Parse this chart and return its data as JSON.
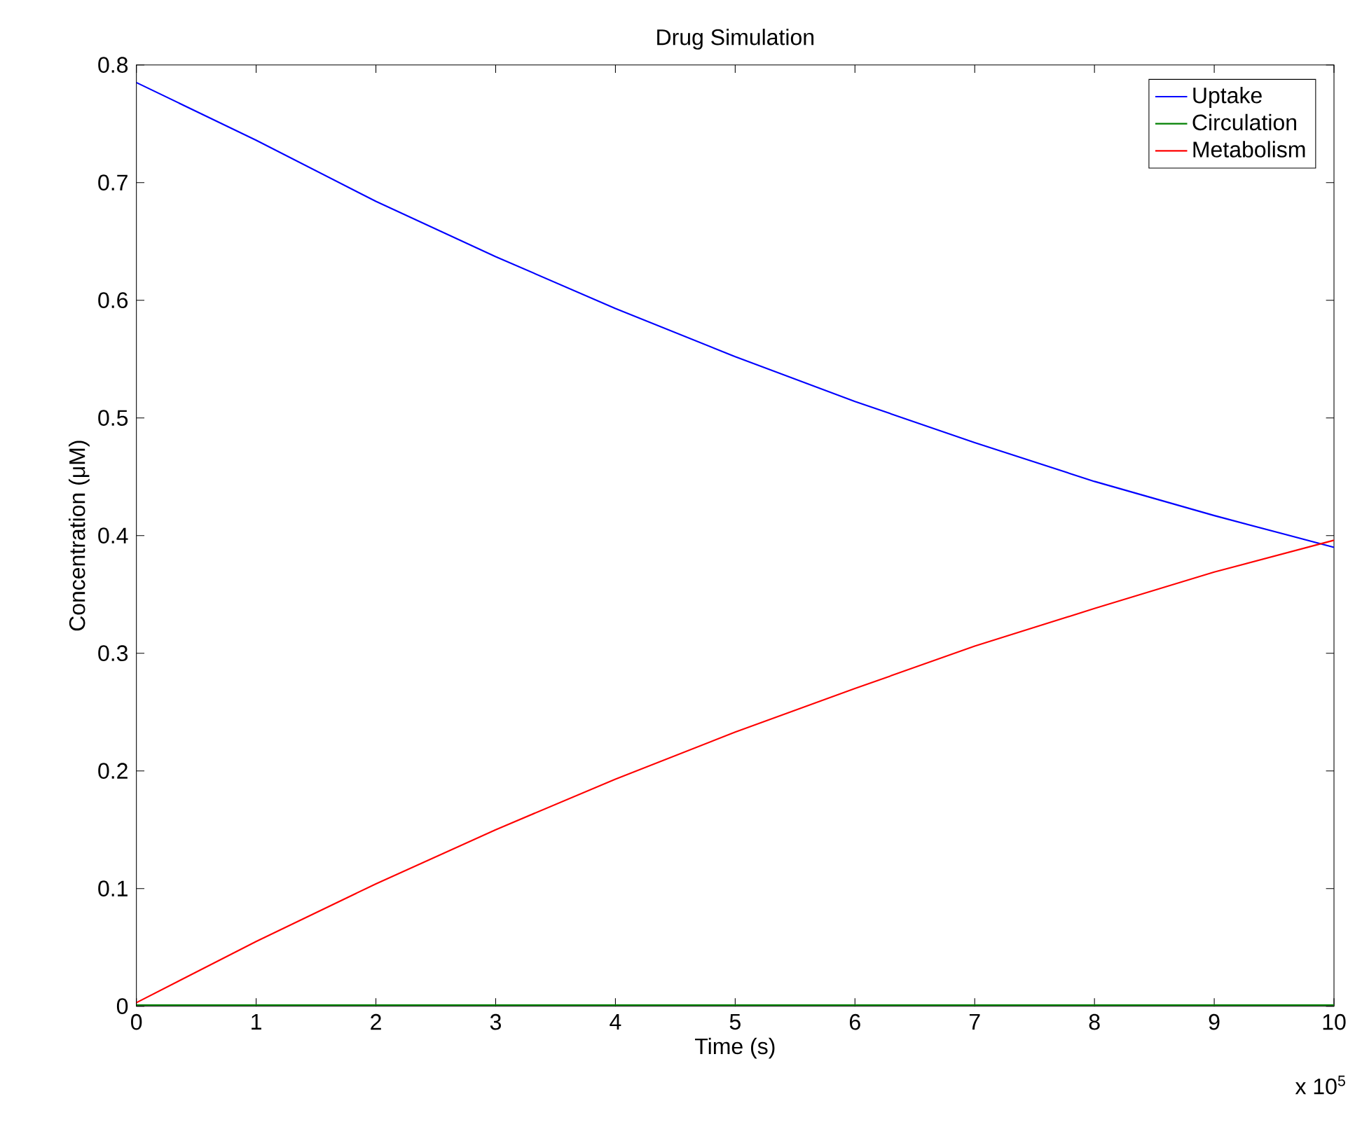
{
  "chart_data": {
    "type": "line",
    "title": "Drug Simulation",
    "xlabel": "Time (s)",
    "ylabel": "Concentration (μM)",
    "annotations": [
      "x 10$^{5}$"
    ],
    "x": [
      0,
      1,
      2,
      3,
      4,
      5,
      6,
      7,
      8,
      9,
      10
    ],
    "series": [
      {
        "name": "Uptake",
        "color": "#0000ff",
        "values": [
          0.785,
          0.736,
          0.684,
          0.637,
          0.593,
          0.552,
          0.514,
          0.479,
          0.446,
          0.417,
          0.39
        ]
      },
      {
        "name": "Circulation",
        "color": "#008000",
        "values": [
          0.001,
          0.001,
          0.001,
          0.001,
          0.001,
          0.001,
          0.001,
          0.001,
          0.001,
          0.001,
          0.001
        ]
      },
      {
        "name": "Metabolism",
        "color": "#ff0000",
        "values": [
          0.003,
          0.055,
          0.104,
          0.15,
          0.193,
          0.233,
          0.27,
          0.306,
          0.338,
          0.369,
          0.396
        ]
      }
    ],
    "xlim": [
      0,
      10
    ],
    "xticks": [
      0,
      1,
      2,
      3,
      4,
      5,
      6,
      7,
      8,
      9,
      10
    ],
    "ylim": [
      0,
      0.8
    ],
    "yticks": [
      0,
      0.1,
      0.2,
      0.3,
      0.4,
      0.5,
      0.6,
      0.7,
      0.8
    ],
    "legend": "top right",
    "grid": false,
    "marker": "none",
    "line_style": "solid"
  }
}
